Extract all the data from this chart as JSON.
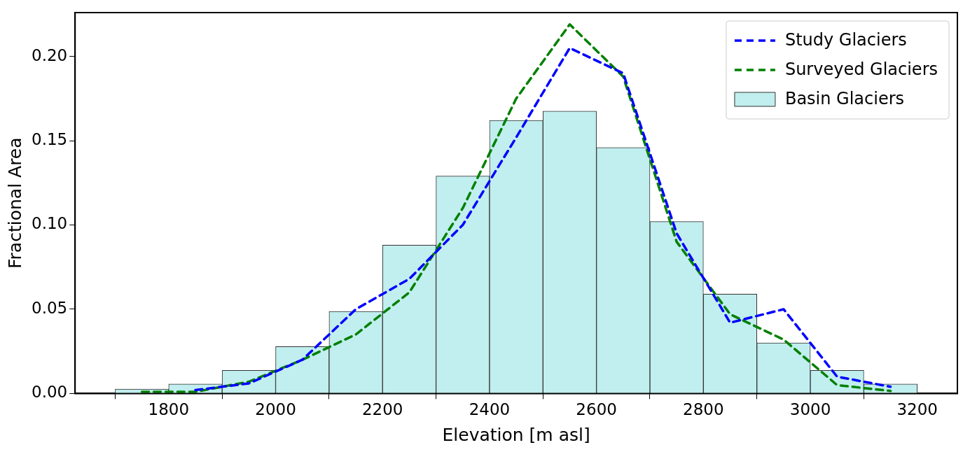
{
  "chart_data": {
    "type": "histogram",
    "xlabel": "Elevation [m asl]",
    "ylabel": "Fractional Area",
    "xlim": [
      1625,
      3275
    ],
    "xticks": [
      1800,
      2000,
      2200,
      2400,
      2600,
      2800,
      3000,
      3200
    ],
    "ylim": [
      0,
      0.226
    ],
    "yticks": [
      {
        "value": 0,
        "label": "0.00"
      },
      {
        "value": 0.05,
        "label": "0.05"
      },
      {
        "value": 0.1,
        "label": "0.10"
      },
      {
        "value": 0.15,
        "label": "0.15"
      },
      {
        "value": 0.2,
        "label": "0.20"
      }
    ],
    "legend": "top right",
    "grid": false,
    "series": [
      {
        "name": "Study Glaciers",
        "type": "line",
        "color": "#0000ff",
        "line_style": "dashed",
        "x": [
          1850,
          1950,
          2050,
          2150,
          2250,
          2350,
          2450,
          2550,
          2650,
          2750,
          2850,
          2950,
          3050,
          3150
        ],
        "values": [
          0.002,
          0.006,
          0.02,
          0.05,
          0.068,
          0.1,
          0.152,
          0.205,
          0.19,
          0.095,
          0.042,
          0.05,
          0.01,
          0.004
        ]
      },
      {
        "name": "Surveyed Glaciers",
        "type": "line",
        "color": "#008000",
        "line_style": "dashed",
        "x": [
          1750,
          1850,
          1950,
          2050,
          2150,
          2250,
          2350,
          2450,
          2550,
          2650,
          2750,
          2850,
          2950,
          3050,
          3150
        ],
        "values": [
          0.001,
          0.001,
          0.007,
          0.02,
          0.035,
          0.06,
          0.11,
          0.175,
          0.219,
          0.188,
          0.09,
          0.047,
          0.032,
          0.005,
          0.0015
        ]
      },
      {
        "name": "Basin Glaciers",
        "color": "#c1eeee",
        "bins": [
          1700,
          1800,
          1900,
          2000,
          2100,
          2200,
          2300,
          2400,
          2500,
          2600,
          2700,
          2800,
          2900,
          3000,
          3100,
          3200
        ],
        "values": [
          0.0026,
          0.0056,
          0.0137,
          0.0278,
          0.0487,
          0.088,
          0.129,
          0.162,
          0.1675,
          0.146,
          0.102,
          0.059,
          0.03,
          0.0137,
          0.0056
        ]
      }
    ]
  }
}
